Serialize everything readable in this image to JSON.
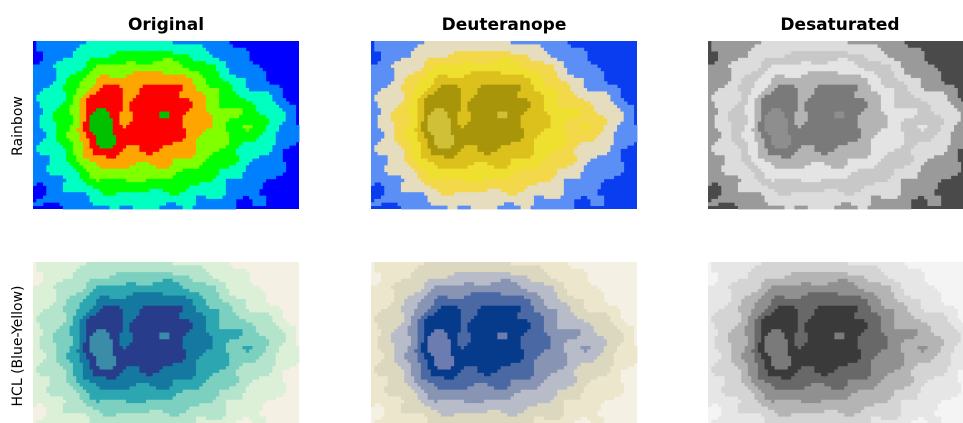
{
  "chart_data": {
    "type": "heatmap",
    "column_titles": [
      "Original",
      "Deuteranope",
      "Desaturated"
    ],
    "row_labels": [
      "Rainbow",
      "HCL (Blue-Yellow)"
    ],
    "levels": 8,
    "colormaps": {
      "rainbow": {
        "original": [
          "#0000ff",
          "#0080ff",
          "#00ffc0",
          "#00ff00",
          "#80ff00",
          "#ffa500",
          "#ff0000",
          "#00c000"
        ],
        "deuteranope": [
          "#0a3df0",
          "#5b8ff5",
          "#e6dcbe",
          "#f3d84a",
          "#efe030",
          "#dcc01c",
          "#a8950a",
          "#d0c038"
        ],
        "desaturated": [
          "#4a4a4a",
          "#9a9a9a",
          "#dcdcdc",
          "#c8c8c8",
          "#e4e4e4",
          "#b4b4b4",
          "#7a7a7a",
          "#8e8e8e"
        ]
      },
      "hcl": {
        "original": [
          "#f4f0e4",
          "#dcf0d8",
          "#b4e4cc",
          "#7cd0c0",
          "#2ca6b0",
          "#1478a0",
          "#283c8c",
          "#3a8ca8"
        ],
        "deuteranope": [
          "#f4f0e4",
          "#ece6cc",
          "#dcd8c0",
          "#b8bcc8",
          "#8894b4",
          "#4a68a4",
          "#063a8a",
          "#6c7cb0"
        ],
        "desaturated": [
          "#f4f4f4",
          "#e6e6e6",
          "#d4d4d4",
          "#b4b4b4",
          "#909090",
          "#686868",
          "#3a3a3a",
          "#7a7a7a"
        ]
      }
    }
  }
}
